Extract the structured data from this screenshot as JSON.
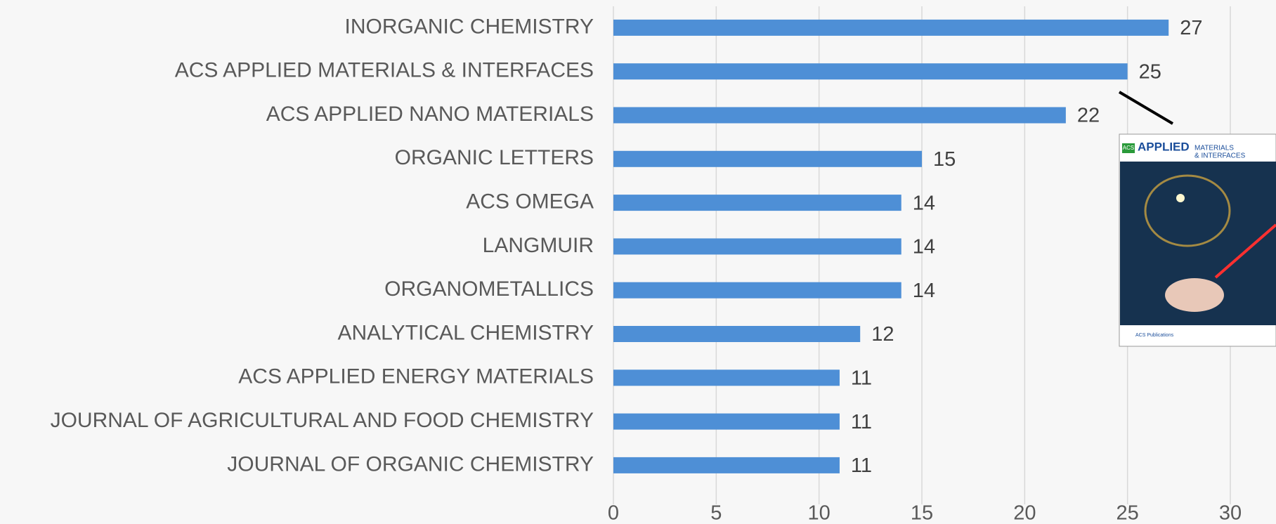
{
  "chart_data": {
    "type": "bar",
    "orientation": "horizontal",
    "categories": [
      "INORGANIC CHEMISTRY",
      "ACS APPLIED MATERIALS & INTERFACES",
      "ACS APPLIED NANO MATERIALS",
      "ORGANIC LETTERS",
      "ACS OMEGA",
      "LANGMUIR",
      "ORGANOMETALLICS",
      "ANALYTICAL CHEMISTRY",
      "ACS APPLIED ENERGY MATERIALS",
      "JOURNAL OF AGRICULTURAL AND FOOD CHEMISTRY",
      "JOURNAL OF ORGANIC CHEMISTRY"
    ],
    "values": [
      27,
      25,
      22,
      15,
      14,
      14,
      14,
      12,
      11,
      11,
      11
    ],
    "color": "#4e8fd6",
    "xlim": [
      0,
      30
    ],
    "xticks": [
      0,
      5,
      10,
      15,
      20,
      25,
      30
    ],
    "grid": true
  },
  "inset": {
    "brand": "ACS",
    "title": "APPLIED",
    "title2": "MATERIALS",
    "title3": "& INTERFACES",
    "publisher": "ACS Publications"
  }
}
